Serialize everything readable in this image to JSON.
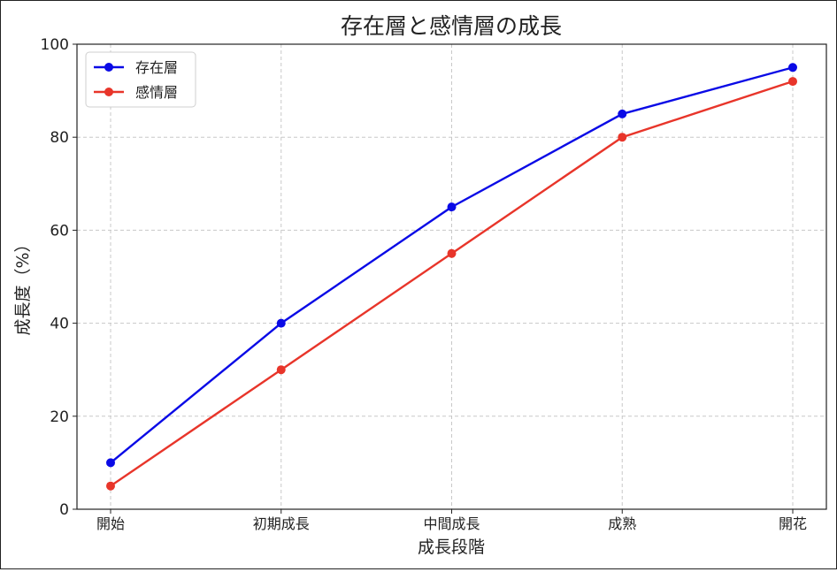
{
  "chart_data": {
    "type": "line",
    "title": "存在層と感情層の成長",
    "xlabel": "成長段階",
    "ylabel": "成長度（%）",
    "categories": [
      "開始",
      "初期成長",
      "中間成長",
      "成熟",
      "開花"
    ],
    "ylim": [
      0,
      100
    ],
    "yticks": [
      0,
      20,
      40,
      60,
      80,
      100
    ],
    "grid": true,
    "legend_position": "top-left",
    "series": [
      {
        "name": "存在層",
        "values": [
          10,
          40,
          65,
          85,
          95
        ],
        "color": "#0a0ae6"
      },
      {
        "name": "感情層",
        "values": [
          5,
          30,
          55,
          80,
          92
        ],
        "color": "#e8352a"
      }
    ]
  }
}
